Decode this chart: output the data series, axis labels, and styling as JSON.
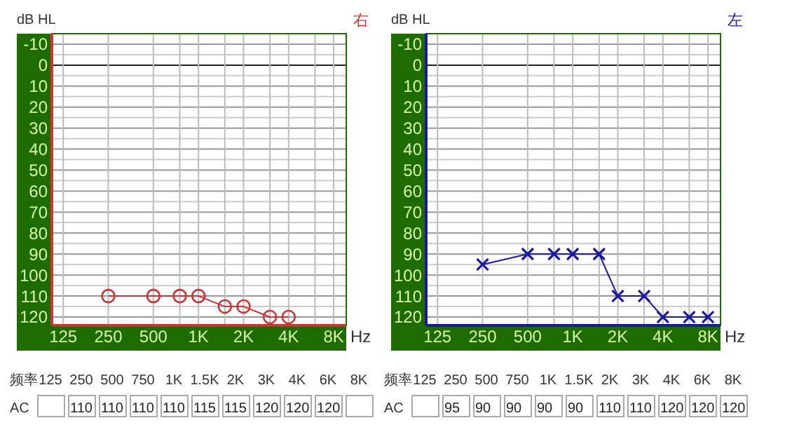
{
  "chart_data": [
    {
      "type": "line",
      "title": "右",
      "ylabel": "dB HL",
      "xlabel": "Hz",
      "log": "x",
      "grid": true,
      "marker": "circle",
      "line_style": "solid",
      "x": [
        250,
        500,
        750,
        1000,
        1500,
        2000,
        3000,
        4000
      ],
      "xlim": [
        105,
        9700
      ],
      "xticks": [
        125,
        250,
        500,
        {
          "value": 750,
          "label": null
        },
        {
          "value": 1000,
          "label": "1K"
        },
        {
          "value": 1500,
          "label": null
        },
        {
          "value": 2000,
          "label": "2K"
        },
        {
          "value": 3000,
          "label": null
        },
        {
          "value": 4000,
          "label": "4K"
        },
        {
          "value": 6000,
          "label": null
        },
        {
          "value": 8000,
          "label": "8K"
        }
      ],
      "ylim": [
        124,
        -15
      ],
      "yticks": [
        -10,
        {
          "value": -5,
          "label": null
        },
        0,
        {
          "value": 5,
          "label": null
        },
        10,
        {
          "value": 15,
          "label": null
        },
        20,
        {
          "value": 25,
          "label": null
        },
        30,
        {
          "value": 35,
          "label": null
        },
        40,
        {
          "value": 45,
          "label": null
        },
        50,
        {
          "value": 55,
          "label": null
        },
        60,
        {
          "value": 65,
          "label": null
        },
        70,
        {
          "value": 75,
          "label": null
        },
        80,
        {
          "value": 85,
          "label": null
        },
        90,
        {
          "value": 95,
          "label": null
        },
        100,
        {
          "value": 105,
          "label": null
        },
        110,
        {
          "value": 115,
          "label": null
        },
        120
      ],
      "series": [
        {
          "color": "#cc3333",
          "values": [
            110,
            110,
            110,
            110,
            115,
            115,
            120,
            120
          ]
        }
      ]
    },
    {
      "type": "line",
      "title": "左",
      "ylabel": "dB HL",
      "xlabel": "Hz",
      "log": "x",
      "grid": true,
      "marker": "cross",
      "line_style": "solid",
      "x": [
        250,
        500,
        750,
        1000,
        1500,
        2000,
        3000,
        4000,
        6000,
        8000
      ],
      "xlim": [
        105,
        9700
      ],
      "xticks": [
        125,
        250,
        500,
        {
          "value": 750,
          "label": null
        },
        {
          "value": 1000,
          "label": "1K"
        },
        {
          "value": 1500,
          "label": null
        },
        {
          "value": 2000,
          "label": "2K"
        },
        {
          "value": 3000,
          "label": null
        },
        {
          "value": 4000,
          "label": "4K"
        },
        {
          "value": 6000,
          "label": null
        },
        {
          "value": 8000,
          "label": "8K"
        }
      ],
      "ylim": [
        124,
        -15
      ],
      "yticks": [
        -10,
        {
          "value": -5,
          "label": null
        },
        0,
        {
          "value": 5,
          "label": null
        },
        10,
        {
          "value": 15,
          "label": null
        },
        20,
        {
          "value": 25,
          "label": null
        },
        30,
        {
          "value": 35,
          "label": null
        },
        40,
        {
          "value": 45,
          "label": null
        },
        50,
        {
          "value": 55,
          "label": null
        },
        60,
        {
          "value": 65,
          "label": null
        },
        70,
        {
          "value": 75,
          "label": null
        },
        80,
        {
          "value": 85,
          "label": null
        },
        90,
        {
          "value": 95,
          "label": null
        },
        100,
        {
          "value": 105,
          "label": null
        },
        110,
        {
          "value": 115,
          "label": null
        },
        120
      ],
      "series": [
        {
          "color": "#1a1a9e",
          "values": [
            95,
            90,
            90,
            90,
            90,
            110,
            110,
            120,
            120,
            120
          ]
        }
      ]
    },
    {
      "type": "other",
      "annotations": [
        "频率",
        "AC"
      ],
      "data_labels": true,
      "categories": [
        "125",
        "250",
        "500",
        "750",
        "1K",
        "1.5K",
        "2K",
        "3K",
        "4K",
        "6K",
        "8K"
      ],
      "values": [
        null,
        110,
        110,
        110,
        110,
        115,
        115,
        120,
        120,
        120,
        null
      ]
    },
    {
      "type": "other",
      "annotations": [
        "频率",
        "AC"
      ],
      "data_labels": true,
      "categories": [
        "125",
        "250",
        "500",
        "750",
        "1K",
        "1.5K",
        "2K",
        "3K",
        "4K",
        "6K",
        "8K"
      ],
      "values": [
        null,
        95,
        90,
        90,
        90,
        90,
        110,
        110,
        120,
        120,
        120
      ]
    }
  ]
}
